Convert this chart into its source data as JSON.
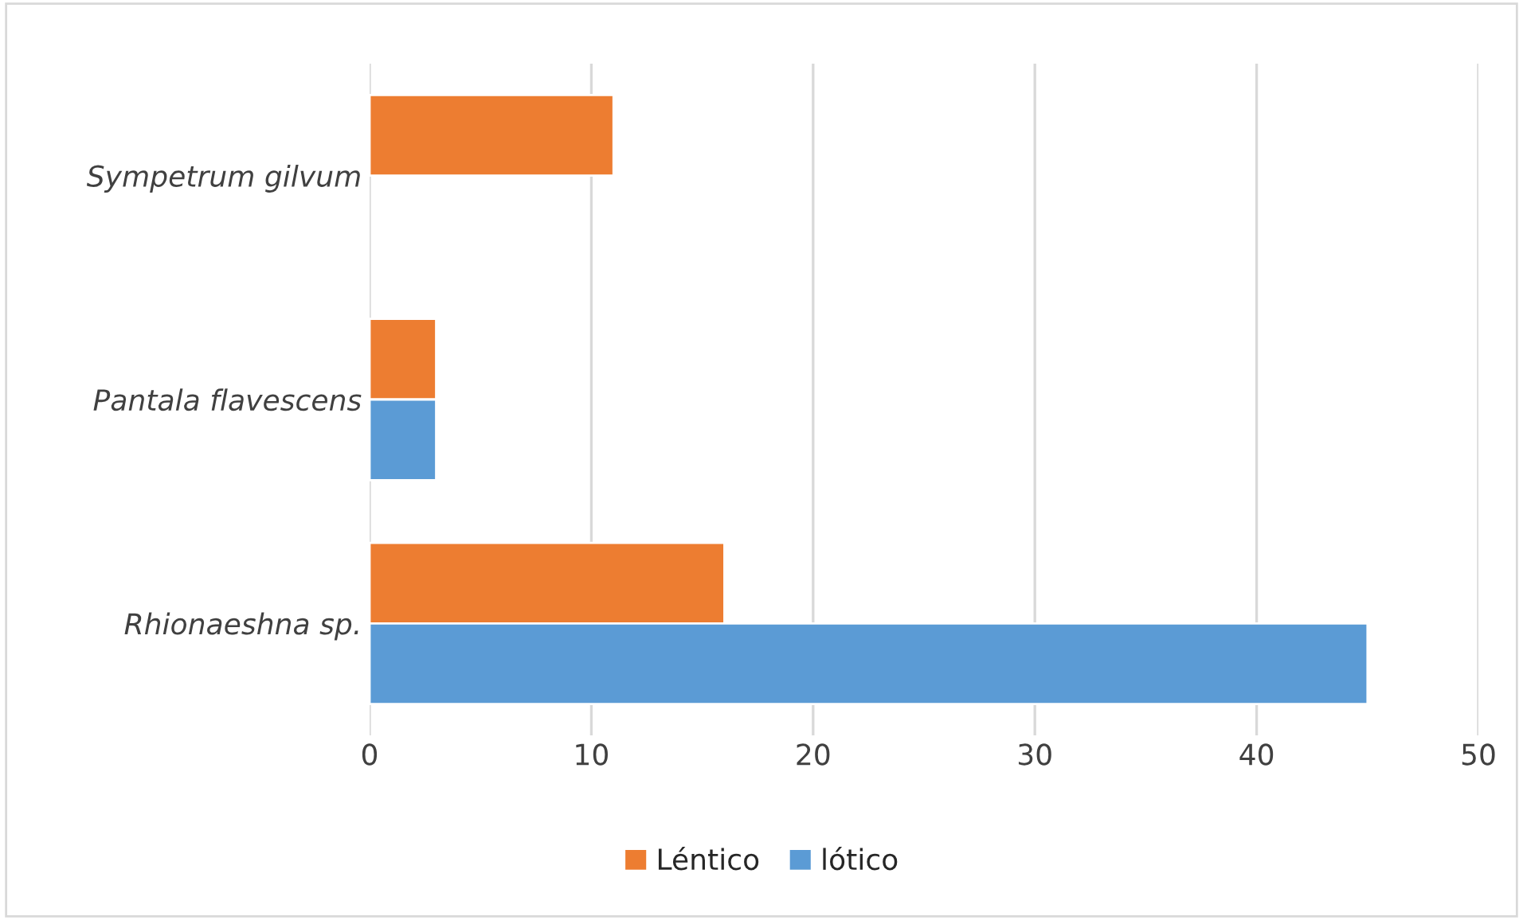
{
  "chart_data": {
    "type": "bar",
    "orientation": "horizontal",
    "categories": [
      "Sympetrum gilvum",
      "Pantala flavescens",
      "Rhionaeshna sp."
    ],
    "series": [
      {
        "name": "Léntico",
        "color": "#ed7d31",
        "values": [
          11,
          3,
          16
        ]
      },
      {
        "name": "lótico",
        "color": "#5b9bd5",
        "values": [
          null,
          3,
          45
        ]
      }
    ],
    "xlim": [
      0,
      50
    ],
    "xticks": [
      0,
      10,
      20,
      30,
      40,
      50
    ],
    "grid": "x",
    "legend": "bottom"
  }
}
